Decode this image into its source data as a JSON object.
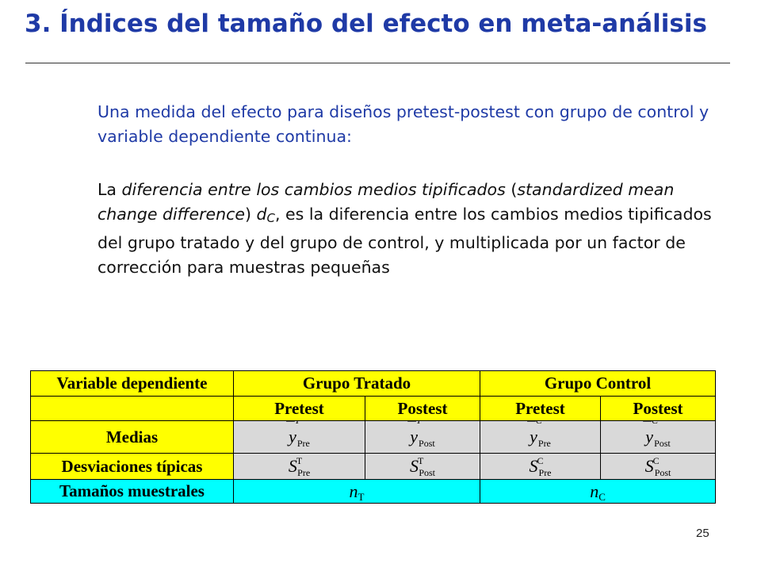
{
  "slide": {
    "title": "3. Índices del tamaño del efecto en meta-análisis",
    "intro": "Una medida del efecto para diseños pretest-postest con grupo de control y variable dependiente continua:",
    "definition": {
      "prefix": "La ",
      "term": "diferencia entre los cambios medios tipificados",
      "open_paren": " (",
      "english_term": "standardized mean change difference",
      "close_paren": ") ",
      "symbol": "d",
      "symbol_sub": "C",
      "rest": ", es la diferencia entre los cambios medios tipificados del grupo tratado y del grupo de control, y multiplicada por un factor de corrección para muestras pequeñas"
    },
    "page_number": "25"
  },
  "table": {
    "header_var": "Variable dependiente",
    "group_treated": "Grupo Tratado",
    "group_control": "Grupo Control",
    "pretest": "Pretest",
    "postest": "Postest",
    "row_means": "Medias",
    "row_sd": "Desviaciones típicas",
    "row_n": "Tamaños muestrales",
    "y_symbol": "y",
    "s_symbol": "S",
    "n_symbol": "n",
    "over_T": "—T",
    "over_C": "—C",
    "sup_T": "T",
    "sup_C": "C",
    "sub_pre": "Pre",
    "sub_post": "Post",
    "sub_T": "T",
    "sub_C": "C"
  },
  "colors": {
    "title": "#1f3aa6",
    "header_fill": "#ffff00",
    "body_fill": "#d9d9d9",
    "sample_fill": "#00ffff"
  }
}
